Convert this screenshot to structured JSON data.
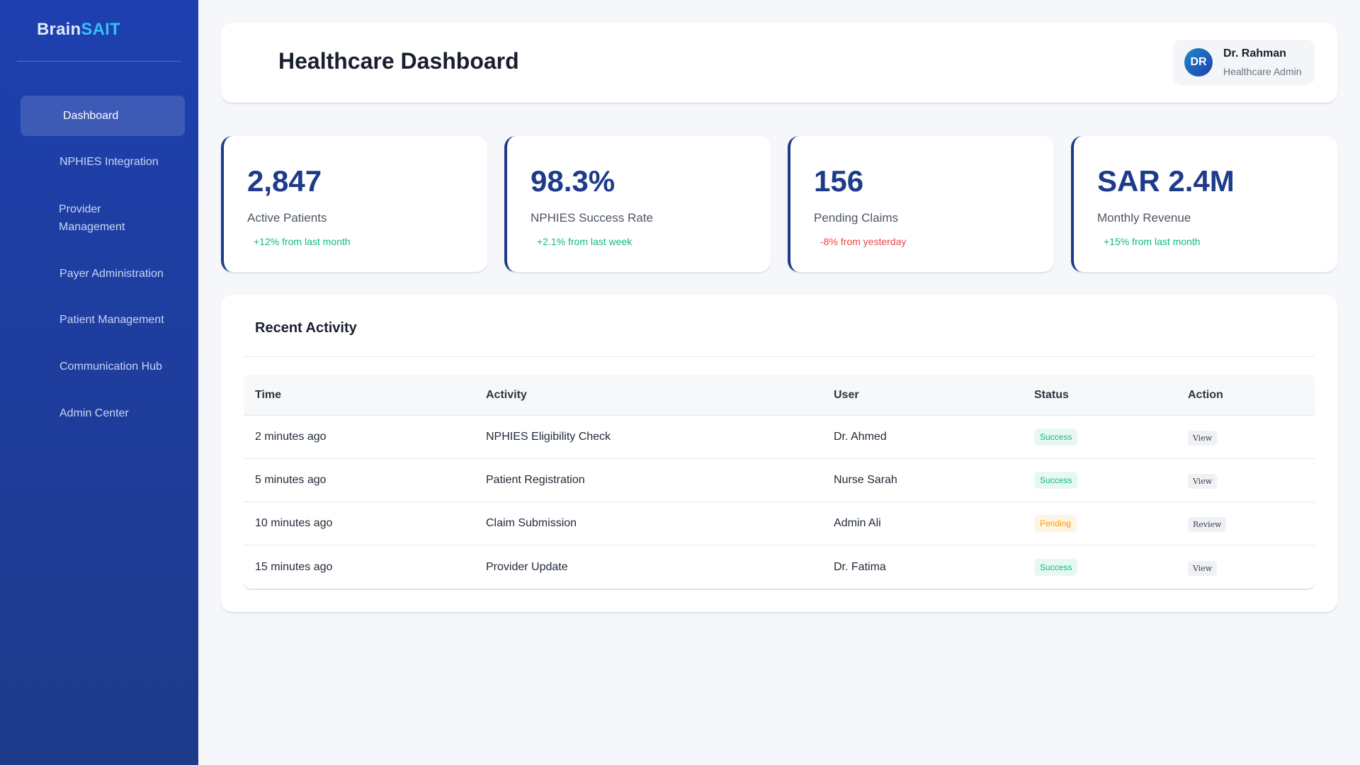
{
  "brand": {
    "part1": "Brain",
    "part2": "SAIT"
  },
  "sidebar": {
    "items": [
      {
        "label": "Dashboard",
        "active": true
      },
      {
        "label": "NPHIES Integration"
      },
      {
        "label": "Provider\nManagement"
      },
      {
        "label": "Payer Administration"
      },
      {
        "label": "Patient Management"
      },
      {
        "label": "Communication Hub"
      },
      {
        "label": "Admin Center"
      }
    ]
  },
  "header": {
    "title": "Healthcare Dashboard",
    "user": {
      "initials": "DR",
      "name": "Dr. Rahman",
      "role": "Healthcare Admin"
    }
  },
  "stats": [
    {
      "value": "2,847",
      "label": "Active Patients",
      "change": "+12% from last month",
      "trend": "up"
    },
    {
      "value": "98.3%",
      "label": "NPHIES Success Rate",
      "change": "+2.1% from last week",
      "trend": "up"
    },
    {
      "value": "156",
      "label": "Pending Claims",
      "change": "-8% from yesterday",
      "trend": "down"
    },
    {
      "value": "SAR 2.4M",
      "label": "Monthly Revenue",
      "change": "+15% from last month",
      "trend": "up"
    }
  ],
  "activity": {
    "title": "Recent Activity",
    "columns": [
      "Time",
      "Activity",
      "User",
      "Status",
      "Action"
    ],
    "rows": [
      {
        "time": "2 minutes ago",
        "activity": "NPHIES Eligibility Check",
        "user": "Dr. Ahmed",
        "status": "Success",
        "action": "View"
      },
      {
        "time": "5 minutes ago",
        "activity": "Patient Registration",
        "user": "Nurse Sarah",
        "status": "Success",
        "action": "View"
      },
      {
        "time": "10 minutes ago",
        "activity": "Claim Submission",
        "user": "Admin Ali",
        "status": "Pending",
        "action": "Review"
      },
      {
        "time": "15 minutes ago",
        "activity": "Provider Update",
        "user": "Dr. Fatima",
        "status": "Success",
        "action": "View"
      }
    ]
  },
  "colors": {
    "sidebar_top": "#1e40af",
    "sidebar_bottom": "#1e3a8a",
    "accent": "#1e3a8a",
    "positive": "#10b981",
    "negative": "#ef4444",
    "pending": "#f59e0b"
  }
}
